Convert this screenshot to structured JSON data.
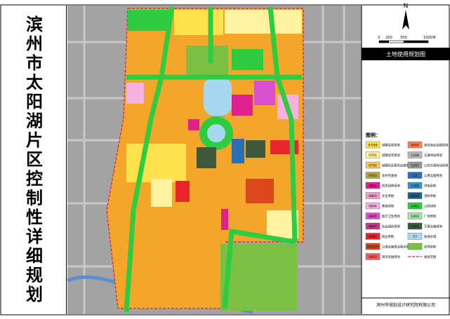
{
  "title": "滨州市太阳湖片区控制性详细规划",
  "north": "N",
  "scale": {
    "labels": [
      "0",
      "200",
      "500",
      "1000米"
    ]
  },
  "map_title": "土地使用规划图",
  "legend": {
    "heading": "图例：",
    "items": [
      {
        "code": "07/09",
        "label": "城镇住宅用地",
        "color": "#ffe14d"
      },
      {
        "code": "0701",
        "label": "城镇住宅用地",
        "color": "#fff3a0"
      },
      {
        "code": "0702",
        "label": "城镇社区服务设施用地",
        "color": "#f7c85a"
      },
      {
        "code": "0703",
        "label": "农村宅基地",
        "color": "#b5a642"
      },
      {
        "code": "0801",
        "label": "机关团体用地",
        "color": "#e0208c"
      },
      {
        "code": "0803",
        "label": "文化用地",
        "color": "#f2a0c8"
      },
      {
        "code": "0804",
        "label": "教育用地",
        "color": "#f7b2e0"
      },
      {
        "code": "0805",
        "label": "医疗卫生用地",
        "color": "#d94fd0"
      },
      {
        "code": "0807",
        "label": "社会福利用地",
        "color": "#c23a8a"
      },
      {
        "code": "0901",
        "label": "商业用地",
        "color": "#e8252a"
      },
      {
        "code": "090105",
        "label": "公用设施营业网点用地",
        "color": "#d9481c"
      },
      {
        "code": "0903",
        "label": "商务金融用地",
        "color": "#f06060"
      },
      {
        "code": "0904",
        "label": "商务商业金融用地",
        "color": "#ff7f50"
      },
      {
        "code": "1208",
        "label": "交通场站用地",
        "color": "#b8b8b8"
      },
      {
        "code": "1207",
        "label": "公共交通场站用地",
        "color": "#9a9a9a"
      },
      {
        "code": "13",
        "label": "公用设施用地",
        "color": "#2b6fb5"
      },
      {
        "code": "1309",
        "label": "供电用地",
        "color": "#3a8fd0"
      },
      {
        "code": "1310",
        "label": "消防用地",
        "color": "#1f5f8f"
      },
      {
        "code": "1401",
        "label": "公园绿地",
        "color": "#2ecc40"
      },
      {
        "code": "1403",
        "label": "广场用地",
        "color": "#9ee6a8"
      },
      {
        "code": "1501",
        "label": "军事设施用地",
        "color": "#3d5a3d"
      },
      {
        "code": "17",
        "label": "陆地水域",
        "color": "#a8d8f0"
      },
      {
        "code": "",
        "label": "农林用地",
        "color": "#7ac143"
      }
    ],
    "boundary": "规划范围"
  },
  "footer": "滨州市规划设计研究院有限公司"
}
